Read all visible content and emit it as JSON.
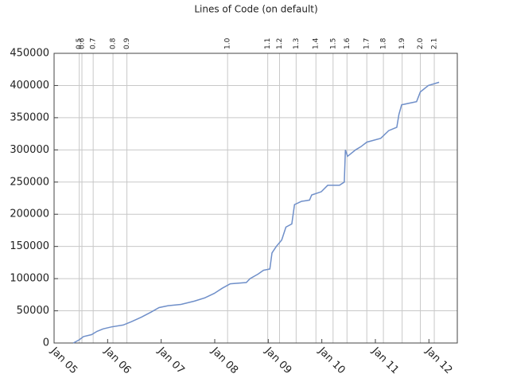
{
  "chart_data": {
    "type": "line",
    "title": "Lines of Code (on default)",
    "x": [
      2005.36,
      2005.47,
      2005.55,
      2005.7,
      2005.8,
      2005.92,
      2006.07,
      2006.29,
      2006.44,
      2006.63,
      2006.81,
      2006.96,
      2007.13,
      2007.37,
      2007.62,
      2007.81,
      2007.99,
      2008.14,
      2008.29,
      2008.59,
      2008.66,
      2008.81,
      2008.91,
      2009.03,
      2009.07,
      2009.15,
      2009.25,
      2009.33,
      2009.44,
      2009.49,
      2009.62,
      2009.77,
      2009.81,
      2009.99,
      2010.11,
      2010.33,
      2010.42,
      2010.44,
      2010.48,
      2010.63,
      2010.73,
      2010.84,
      2011.1,
      2011.25,
      2011.4,
      2011.44,
      2011.49,
      2011.77,
      2011.84,
      2011.99,
      2012.19
    ],
    "series": [
      {
        "color": "#6f8fc9",
        "values": [
          0,
          5000,
          10000,
          13000,
          18000,
          22000,
          25000,
          28000,
          33000,
          40000,
          48000,
          55000,
          58000,
          60000,
          65000,
          70000,
          77000,
          85000,
          92000,
          94000,
          100000,
          107000,
          113000,
          115000,
          140000,
          150000,
          160000,
          180000,
          185000,
          215000,
          220000,
          222000,
          230000,
          235000,
          245000,
          245000,
          250000,
          300000,
          290000,
          300000,
          305000,
          312000,
          318000,
          330000,
          335000,
          355000,
          370000,
          375000,
          390000,
          400000,
          405000
        ]
      }
    ],
    "xlim": [
      2005,
      2012.53
    ],
    "xticks": [
      {
        "value": 2005,
        "label": "Jan 05"
      },
      {
        "value": 2006,
        "label": "Jan 06"
      },
      {
        "value": 2007,
        "label": "Jan 07"
      },
      {
        "value": 2008,
        "label": "Jan 08"
      },
      {
        "value": 2009,
        "label": "Jan 09"
      },
      {
        "value": 2010,
        "label": "Jan 10"
      },
      {
        "value": 2011,
        "label": "Jan 11"
      },
      {
        "value": 2012,
        "label": "Jan 12"
      }
    ],
    "ylim": [
      0,
      450000
    ],
    "yticks": [
      0,
      50000,
      100000,
      150000,
      200000,
      250000,
      300000,
      350000,
      400000,
      450000
    ],
    "grid": true,
    "versions": {
      "labels": [
        "0.5",
        "0.6",
        "0.7",
        "0.8",
        "0.9",
        "1.0",
        "1.1",
        "1.2",
        "1.3",
        "1.4",
        "1.5",
        "1.6",
        "1.7",
        "1.8",
        "1.9",
        "2.0",
        "2.1"
      ],
      "x": [
        2005.47,
        2005.52,
        2005.73,
        2006.1,
        2006.36,
        2008.24,
        2008.99,
        2009.21,
        2009.52,
        2009.89,
        2010.21,
        2010.47,
        2010.84,
        2011.15,
        2011.5,
        2011.84,
        2012.1
      ]
    }
  }
}
